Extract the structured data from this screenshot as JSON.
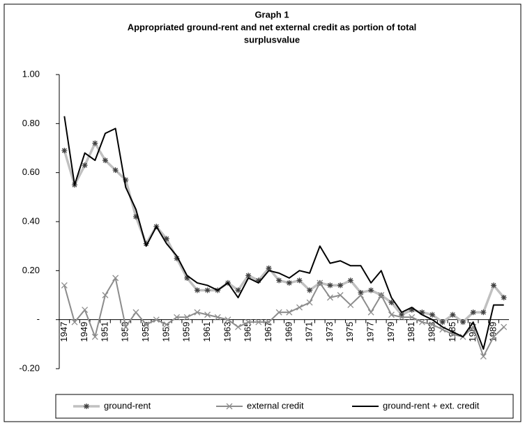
{
  "chart_data": {
    "type": "line",
    "title": "Graph 1",
    "subtitle": [
      "Appropriated ground-rent and net external credit as portion of total",
      "surplusvalue"
    ],
    "categories": [
      "1947",
      null,
      "1949",
      null,
      "1951",
      null,
      "1953",
      null,
      "1955",
      null,
      "1957",
      null,
      "1959",
      null,
      "1961",
      null,
      "1963",
      null,
      "1965",
      null,
      "1967",
      null,
      "1969",
      null,
      "1971",
      null,
      "1973",
      null,
      "1975",
      null,
      "1977",
      null,
      "1979",
      null,
      "1981",
      null,
      "1983",
      null,
      "1985",
      null,
      "1987",
      null,
      "1989",
      null
    ],
    "series": [
      {
        "name": "ground-rent",
        "color": "#c0c0c0",
        "marker_color": "#404040",
        "marker": "star",
        "values": [
          0.69,
          0.55,
          0.63,
          0.72,
          0.65,
          0.61,
          0.57,
          0.42,
          0.31,
          0.38,
          0.33,
          0.25,
          0.17,
          0.12,
          0.12,
          0.12,
          0.15,
          0.12,
          0.18,
          0.16,
          0.21,
          0.16,
          0.15,
          0.16,
          0.12,
          0.15,
          0.14,
          0.14,
          0.16,
          0.11,
          0.12,
          0.1,
          0.07,
          0.02,
          0.04,
          0.03,
          0.02,
          -0.01,
          0.02,
          -0.01,
          0.03,
          0.03,
          0.14,
          0.09
        ]
      },
      {
        "name": "external credit",
        "color": "#8c8c8c",
        "marker_color": "#8c8c8c",
        "marker": "x",
        "values": [
          0.14,
          -0.01,
          0.04,
          -0.07,
          0.1,
          0.17,
          -0.03,
          0.03,
          -0.02,
          0.0,
          -0.02,
          0.01,
          0.01,
          0.03,
          0.02,
          0.01,
          0.0,
          -0.03,
          -0.01,
          -0.01,
          -0.01,
          0.03,
          0.03,
          0.05,
          0.07,
          0.15,
          0.09,
          0.1,
          0.06,
          0.1,
          0.03,
          0.1,
          0.02,
          0.01,
          0.01,
          -0.01,
          -0.02,
          -0.04,
          -0.06,
          -0.07,
          -0.03,
          -0.15,
          -0.07,
          -0.03
        ]
      },
      {
        "name": "ground-rent + ext. credit",
        "color": "#000000",
        "marker": "none",
        "values": [
          0.83,
          0.55,
          0.68,
          0.65,
          0.76,
          0.78,
          0.54,
          0.45,
          0.3,
          0.38,
          0.31,
          0.26,
          0.18,
          0.15,
          0.14,
          0.12,
          0.15,
          0.09,
          0.17,
          0.15,
          0.2,
          0.19,
          0.17,
          0.2,
          0.19,
          0.3,
          0.23,
          0.24,
          0.22,
          0.22,
          0.15,
          0.2,
          0.09,
          0.03,
          0.05,
          0.02,
          0.0,
          -0.03,
          -0.05,
          -0.07,
          -0.01,
          -0.12,
          0.06,
          0.06
        ]
      }
    ],
    "ylim": [
      -0.2,
      1.0
    ],
    "yticks": [
      {
        "value": 1.0,
        "label": "1.00"
      },
      {
        "value": 0.8,
        "label": "0.80"
      },
      {
        "value": 0.6,
        "label": "0.60"
      },
      {
        "value": 0.4,
        "label": "0.40"
      },
      {
        "value": 0.2,
        "label": "0.20"
      },
      {
        "value": 0,
        "label": "-"
      },
      {
        "value": -0.2,
        "label": "-0.20"
      }
    ],
    "grid": false,
    "legend": "bottom"
  }
}
